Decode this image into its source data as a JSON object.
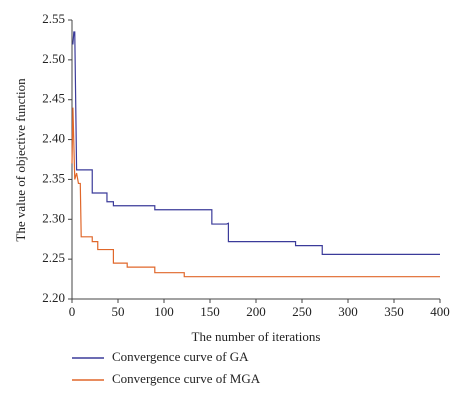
{
  "chart_data": {
    "type": "line",
    "xlabel": "The number of iterations",
    "ylabel": "The value of objective function",
    "xlim": [
      0,
      400
    ],
    "xticks": [
      0,
      50,
      100,
      150,
      200,
      250,
      300,
      350,
      400
    ],
    "ylim": [
      2.2,
      2.55
    ],
    "yticks": [
      {
        "value": 2.2,
        "label": "2.20"
      },
      2.25,
      {
        "value": 2.3,
        "label": "2.30"
      },
      2.35,
      {
        "value": 2.4,
        "label": "2.40"
      },
      2.45,
      {
        "value": 2.5,
        "label": "2.50"
      },
      2.55
    ],
    "series": [
      {
        "name": "Convergence curve of GA",
        "color": "#3b3b9a",
        "x": [
          0,
          1,
          2,
          3,
          5,
          22,
          22,
          38,
          38,
          45,
          45,
          90,
          90,
          152,
          152,
          168,
          170,
          170,
          243,
          243,
          272,
          272,
          400
        ],
        "values": [
          2.52,
          2.52,
          2.535,
          2.535,
          2.362,
          2.362,
          2.333,
          2.333,
          2.322,
          2.322,
          2.317,
          2.317,
          2.312,
          2.312,
          2.294,
          2.294,
          2.295,
          2.272,
          2.272,
          2.267,
          2.267,
          2.256,
          2.256
        ]
      },
      {
        "name": "Convergence curve of MGA",
        "color": "#e0672a",
        "x": [
          0,
          1,
          3,
          5,
          7,
          9,
          10,
          22,
          22,
          28,
          28,
          45,
          45,
          60,
          60,
          90,
          90,
          122,
          122,
          400
        ],
        "values": [
          2.37,
          2.44,
          2.35,
          2.358,
          2.345,
          2.345,
          2.278,
          2.278,
          2.272,
          2.272,
          2.262,
          2.262,
          2.245,
          2.245,
          2.24,
          2.24,
          2.233,
          2.233,
          2.228,
          2.228
        ]
      }
    ]
  }
}
